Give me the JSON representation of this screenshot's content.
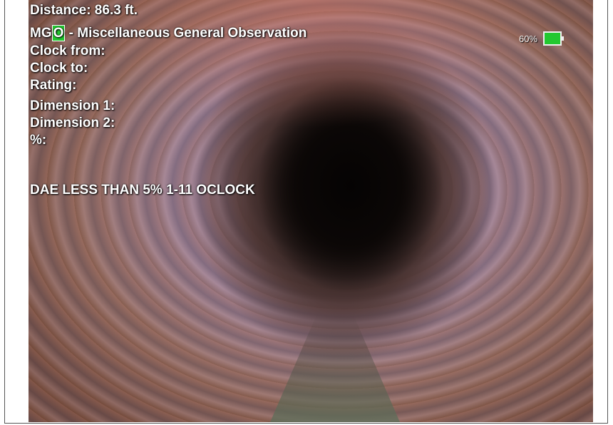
{
  "overlay": {
    "distance": "Distance: 86.3 ft.",
    "code": "MGO",
    "description": "- Miscellaneous General Observation",
    "fields": [
      "Clock from:",
      "Clock to:",
      "Rating:",
      "Dimension 1:",
      "Dimension 2:",
      "%:"
    ],
    "remark": "DAE LESS THAN 5% 1-11 OCLOCK"
  },
  "battery": {
    "label": "60%"
  }
}
